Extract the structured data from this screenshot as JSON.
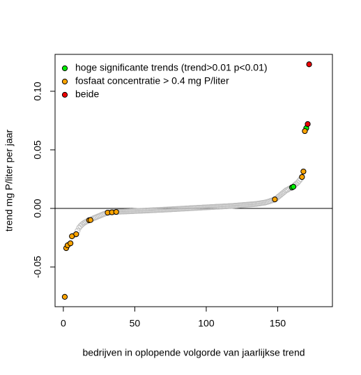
{
  "chart_data": {
    "type": "scatter",
    "x_label": "bedrijven in oplopende volgorde van jaarlijkse trend",
    "y_label": "trend mg P/liter per jaar",
    "xlim": [
      -5.8,
      188.3
    ],
    "ylim": [
      -0.0839,
      0.1315
    ],
    "xticks": [
      0,
      50,
      100,
      150
    ],
    "yticks": [
      {
        "value": -0.05,
        "label": "-0.05"
      },
      {
        "value": 0,
        "label": "0.00"
      },
      {
        "value": 0.05,
        "label": "0.05"
      },
      {
        "value": 0.1,
        "label": "0.10"
      }
    ],
    "hlines": [
      0
    ],
    "legend": "top-left",
    "series": [
      {
        "color": "#bebebe",
        "filled": false,
        "x": [
          1,
          2,
          3,
          4,
          5,
          6,
          7,
          8,
          9,
          10,
          11,
          12,
          13,
          14,
          15,
          16,
          17,
          18,
          19,
          20,
          21,
          22,
          23,
          24,
          25,
          26,
          27,
          28,
          29,
          30,
          31,
          32,
          33,
          34,
          35,
          36,
          37,
          38,
          39,
          40,
          41,
          42,
          43,
          44,
          45,
          46,
          47,
          48,
          49,
          50,
          51,
          52,
          53,
          54,
          55,
          56,
          57,
          58,
          59,
          60,
          61,
          62,
          63,
          64,
          65,
          66,
          67,
          68,
          69,
          70,
          71,
          72,
          73,
          74,
          75,
          76,
          77,
          78,
          79,
          80,
          81,
          82,
          83,
          84,
          85,
          86,
          87,
          88,
          89,
          90,
          91,
          92,
          93,
          94,
          95,
          96,
          97,
          98,
          99,
          100,
          101,
          102,
          103,
          104,
          105,
          106,
          107,
          108,
          109,
          110,
          111,
          112,
          113,
          114,
          115,
          116,
          117,
          118,
          119,
          120,
          121,
          122,
          123,
          124,
          125,
          126,
          127,
          128,
          129,
          130,
          131,
          132,
          133,
          134,
          135,
          136,
          137,
          138,
          139,
          140,
          141,
          142,
          143,
          144,
          145,
          146,
          147,
          148,
          149,
          150,
          151,
          152,
          153,
          154,
          155,
          156,
          157,
          158,
          159,
          160,
          161,
          162,
          163,
          164,
          165,
          166,
          167,
          168,
          169,
          170,
          171,
          172
        ],
        "values": [
          -0.0755,
          -0.0339,
          -0.0315,
          -0.0305,
          -0.0298,
          -0.0238,
          -0.0232,
          -0.0226,
          -0.022,
          -0.019,
          -0.0165,
          -0.015,
          -0.0138,
          -0.0128,
          -0.012,
          -0.0113,
          -0.0107,
          -0.0101,
          -0.0099,
          -0.0092,
          -0.0085,
          -0.008,
          -0.0075,
          -0.007,
          -0.0065,
          -0.006,
          -0.0055,
          -0.005,
          -0.0045,
          -0.0041,
          -0.0036,
          -0.0035,
          -0.0034,
          -0.0033,
          -0.0032,
          -0.0031,
          -0.003,
          -0.0029,
          -0.0028,
          -0.0028,
          -0.0027,
          -0.0027,
          -0.0026,
          -0.0026,
          -0.0025,
          -0.0025,
          -0.0024,
          -0.0024,
          -0.0023,
          -0.0022,
          -0.0022,
          -0.0021,
          -0.0021,
          -0.002,
          -0.002,
          -0.0019,
          -0.0019,
          -0.0018,
          -0.0018,
          -0.0017,
          -0.0016,
          -0.0016,
          -0.0015,
          -0.0015,
          -0.0014,
          -0.0013,
          -0.0013,
          -0.0012,
          -0.0012,
          -0.0011,
          -0.001,
          -0.001,
          -0.0009,
          -0.0008,
          -0.0008,
          -0.0007,
          -0.0006,
          -0.0006,
          -0.0005,
          -0.0004,
          -0.0004,
          -0.0003,
          -0.0002,
          -0.0002,
          -0.0001,
          0,
          0,
          0.0001,
          0.0002,
          0.0002,
          0.0003,
          0.0004,
          0.0004,
          0.0005,
          0.0006,
          0.0006,
          0.0007,
          0.0008,
          0.0008,
          0.0009,
          0.001,
          0.001,
          0.0011,
          0.0012,
          0.0012,
          0.0013,
          0.0014,
          0.0014,
          0.0015,
          0.0016,
          0.0016,
          0.0017,
          0.0018,
          0.0018,
          0.0019,
          0.002,
          0.002,
          0.0021,
          0.0022,
          0.0023,
          0.0024,
          0.0025,
          0.0026,
          0.0027,
          0.0028,
          0.0029,
          0.003,
          0.0031,
          0.0032,
          0.0033,
          0.0034,
          0.0035,
          0.0036,
          0.0037,
          0.0038,
          0.004,
          0.0042,
          0.0044,
          0.0046,
          0.0048,
          0.005,
          0.0053,
          0.0056,
          0.006,
          0.0064,
          0.0068,
          0.0072,
          0.0077,
          0.0085,
          0.0095,
          0.0105,
          0.0115,
          0.0125,
          0.0135,
          0.0145,
          0.0155,
          0.016,
          0.0168,
          0.0174,
          0.0179,
          0.0185,
          0.02,
          0.021,
          0.022,
          0.0235,
          0.025,
          0.0268,
          0.0315,
          0.066,
          0.0685,
          0.072,
          0.123
        ]
      },
      {
        "name": "hoge significante trends (trend>0.01 p<0.01)",
        "color": "#00ee00",
        "filled": true,
        "x": [
          160,
          161,
          170
        ],
        "values": [
          0.0179,
          0.0185,
          0.0685
        ]
      },
      {
        "name": "fosfaat concentratie > 0.4 mg P/liter",
        "color": "#ffa500",
        "filled": true,
        "x": [
          1,
          2,
          3,
          5,
          6,
          9,
          18,
          19,
          31,
          34,
          37,
          148,
          167,
          168,
          169
        ],
        "values": [
          -0.0755,
          -0.0339,
          -0.0315,
          -0.0298,
          -0.0238,
          -0.022,
          -0.0101,
          -0.0099,
          -0.0036,
          -0.0033,
          -0.003,
          0.0077,
          0.0268,
          0.0315,
          0.066
        ]
      },
      {
        "name": "beide",
        "color": "#ee0000",
        "filled": true,
        "x": [
          171,
          172
        ],
        "values": [
          0.072,
          0.123
        ]
      }
    ]
  }
}
